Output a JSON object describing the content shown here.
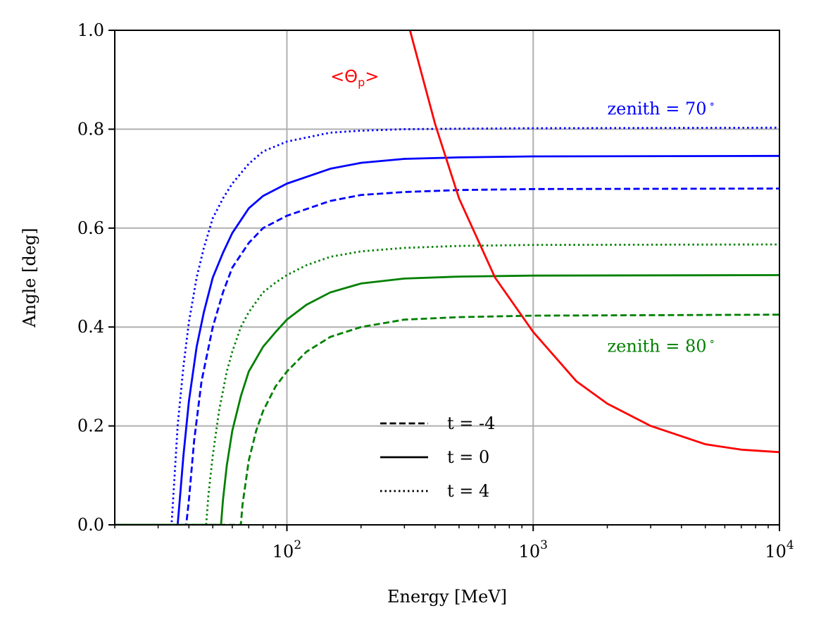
{
  "chart_data": {
    "type": "line",
    "xlabel": "Energy [MeV]",
    "ylabel": "Angle [deg]",
    "xscale": "log",
    "xlim": [
      20,
      10000
    ],
    "ylim": [
      0.0,
      1.0
    ],
    "grid": true,
    "y_ticks": [
      {
        "value": 0.0,
        "label": "0.0"
      },
      {
        "value": 0.2,
        "label": "0.2"
      },
      {
        "value": 0.4,
        "label": "0.4"
      },
      {
        "value": 0.6,
        "label": "0.6"
      },
      {
        "value": 0.8,
        "label": "0.8"
      },
      {
        "value": 1.0,
        "label": "1.0"
      }
    ],
    "x_ticks": [
      {
        "value": 100,
        "base": "10",
        "exp": "2"
      },
      {
        "value": 1000,
        "base": "10",
        "exp": "3"
      },
      {
        "value": 10000,
        "base": "10",
        "exp": "4"
      }
    ],
    "series": [
      {
        "name": "zenith 70°, t = -4",
        "color": "#0000ff",
        "style": "dashed",
        "x": [
          20,
          39,
          40,
          42,
          45,
          50,
          55,
          60,
          70,
          80,
          100,
          150,
          200,
          300,
          500,
          1000,
          10000
        ],
        "y": [
          0,
          0,
          0.05,
          0.17,
          0.29,
          0.4,
          0.47,
          0.52,
          0.57,
          0.6,
          0.625,
          0.655,
          0.667,
          0.673,
          0.677,
          0.679,
          0.68
        ]
      },
      {
        "name": "zenith 70°, t = 0",
        "color": "#0000ff",
        "style": "solid",
        "x": [
          20,
          36,
          37,
          38,
          40,
          43,
          46,
          50,
          55,
          60,
          70,
          80,
          100,
          150,
          200,
          300,
          500,
          1000,
          10000
        ],
        "y": [
          0,
          0,
          0.07,
          0.14,
          0.25,
          0.36,
          0.43,
          0.5,
          0.55,
          0.59,
          0.64,
          0.665,
          0.69,
          0.72,
          0.732,
          0.74,
          0.743,
          0.745,
          0.746
        ]
      },
      {
        "name": "zenith 70°, t = 4",
        "color": "#0000ff",
        "style": "dotted",
        "x": [
          20,
          34,
          35,
          36,
          38,
          40,
          43,
          46,
          50,
          55,
          60,
          70,
          80,
          100,
          150,
          200,
          300,
          500,
          1000,
          10000
        ],
        "y": [
          0,
          0,
          0.1,
          0.2,
          0.32,
          0.41,
          0.5,
          0.56,
          0.62,
          0.66,
          0.69,
          0.73,
          0.755,
          0.775,
          0.793,
          0.797,
          0.8,
          0.801,
          0.802,
          0.803
        ]
      },
      {
        "name": "zenith 80°, t = -4",
        "color": "#008000",
        "style": "dashed",
        "x": [
          20,
          65,
          66,
          70,
          75,
          80,
          90,
          100,
          120,
          150,
          200,
          300,
          500,
          1000,
          10000
        ],
        "y": [
          0,
          0,
          0.04,
          0.13,
          0.19,
          0.23,
          0.28,
          0.31,
          0.35,
          0.38,
          0.4,
          0.415,
          0.42,
          0.423,
          0.425
        ]
      },
      {
        "name": "zenith 80°, t = 0",
        "color": "#008000",
        "style": "solid",
        "x": [
          20,
          54,
          55,
          57,
          60,
          65,
          70,
          80,
          90,
          100,
          120,
          150,
          200,
          300,
          500,
          1000,
          10000
        ],
        "y": [
          0,
          0,
          0.05,
          0.12,
          0.19,
          0.26,
          0.31,
          0.36,
          0.39,
          0.415,
          0.445,
          0.47,
          0.488,
          0.498,
          0.502,
          0.504,
          0.505
        ]
      },
      {
        "name": "zenith 80°, t = 4",
        "color": "#008000",
        "style": "dotted",
        "x": [
          20,
          47,
          48,
          50,
          53,
          57,
          60,
          65,
          70,
          80,
          90,
          100,
          120,
          150,
          200,
          300,
          500,
          1000,
          10000
        ],
        "y": [
          0,
          0,
          0.06,
          0.14,
          0.23,
          0.31,
          0.35,
          0.4,
          0.43,
          0.47,
          0.49,
          0.505,
          0.525,
          0.542,
          0.553,
          0.56,
          0.564,
          0.566,
          0.567
        ]
      },
      {
        "name": "<Θp>",
        "color": "#ff0000",
        "style": "solid",
        "x": [
          316,
          400,
          500,
          700,
          1000,
          1500,
          2000,
          3000,
          5000,
          7000,
          10000
        ],
        "y": [
          1.0,
          0.81,
          0.66,
          0.5,
          0.39,
          0.29,
          0.245,
          0.2,
          0.163,
          0.152,
          0.147
        ]
      }
    ],
    "legend": {
      "position": "lower center",
      "entries": [
        {
          "label": "t = -4",
          "style": "dashed"
        },
        {
          "label": "t = 0",
          "style": "solid"
        },
        {
          "label": "t = 4",
          "style": "dotted"
        }
      ]
    },
    "annotations": [
      {
        "text": "zenith = 70",
        "suffix": "∘",
        "color": "#0000ff",
        "x": 2000,
        "y": 0.83
      },
      {
        "text": "zenith = 80",
        "suffix": "∘",
        "color": "#008000",
        "x": 2000,
        "y": 0.35
      }
    ],
    "theta_label": {
      "prefix": "<Θ",
      "sub": "p",
      "suffix": ">",
      "color": "#ff0000",
      "x": 150,
      "y": 0.895
    }
  }
}
